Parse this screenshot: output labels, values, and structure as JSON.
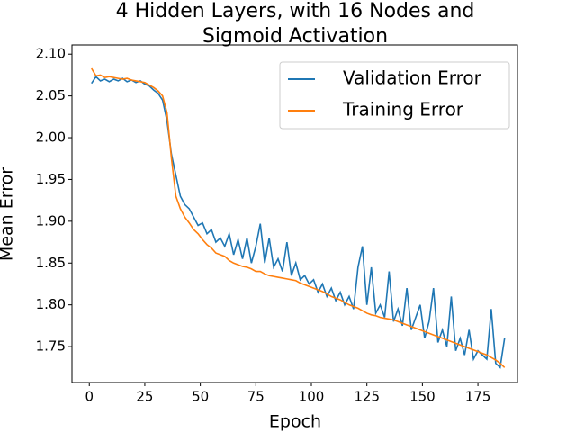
{
  "chart_data": {
    "type": "line",
    "title": [
      "4 Hidden Layers, with 16 Nodes and",
      "Sigmoid Activation"
    ],
    "x_label": "Epoch",
    "y_label": "Mean Error",
    "x": [
      1,
      3,
      5,
      7,
      9,
      11,
      13,
      15,
      17,
      19,
      21,
      23,
      25,
      27,
      29,
      31,
      33,
      35,
      37,
      39,
      41,
      43,
      45,
      47,
      49,
      51,
      53,
      55,
      57,
      59,
      61,
      63,
      65,
      67,
      69,
      71,
      73,
      75,
      77,
      79,
      81,
      83,
      85,
      87,
      89,
      91,
      93,
      95,
      97,
      99,
      101,
      103,
      105,
      107,
      109,
      111,
      113,
      115,
      117,
      119,
      121,
      123,
      125,
      127,
      129,
      131,
      133,
      135,
      137,
      139,
      141,
      143,
      145,
      147,
      149,
      151,
      153,
      155,
      157,
      159,
      161,
      163,
      165,
      167,
      169,
      171,
      173,
      175,
      177,
      179,
      181,
      183,
      185,
      187
    ],
    "series": [
      {
        "name": "Validation Error",
        "color": "#1f77b4",
        "values": [
          2.065,
          2.073,
          2.068,
          2.07,
          2.067,
          2.07,
          2.068,
          2.071,
          2.067,
          2.069,
          2.066,
          2.068,
          2.064,
          2.062,
          2.057,
          2.053,
          2.045,
          2.02,
          1.98,
          1.955,
          1.93,
          1.92,
          1.915,
          1.905,
          1.895,
          1.898,
          1.885,
          1.89,
          1.875,
          1.88,
          1.87,
          1.885,
          1.86,
          1.878,
          1.855,
          1.88,
          1.85,
          1.87,
          1.897,
          1.85,
          1.88,
          1.845,
          1.855,
          1.84,
          1.875,
          1.835,
          1.85,
          1.83,
          1.835,
          1.825,
          1.83,
          1.815,
          1.825,
          1.81,
          1.82,
          1.805,
          1.815,
          1.8,
          1.81,
          1.795,
          1.845,
          1.87,
          1.8,
          1.845,
          1.79,
          1.8,
          1.785,
          1.84,
          1.78,
          1.795,
          1.775,
          1.82,
          1.77,
          1.785,
          1.8,
          1.76,
          1.78,
          1.82,
          1.755,
          1.77,
          1.75,
          1.81,
          1.745,
          1.76,
          1.74,
          1.77,
          1.735,
          1.745,
          1.74,
          1.735,
          1.795,
          1.73,
          1.725,
          1.76
        ]
      },
      {
        "name": "Training Error",
        "color": "#ff7f0e",
        "values": [
          2.083,
          2.074,
          2.075,
          2.072,
          2.073,
          2.072,
          2.071,
          2.07,
          2.071,
          2.069,
          2.068,
          2.067,
          2.066,
          2.063,
          2.06,
          2.056,
          2.05,
          2.03,
          1.975,
          1.93,
          1.915,
          1.905,
          1.898,
          1.89,
          1.885,
          1.878,
          1.872,
          1.868,
          1.862,
          1.86,
          1.858,
          1.853,
          1.85,
          1.848,
          1.846,
          1.845,
          1.843,
          1.84,
          1.84,
          1.837,
          1.835,
          1.834,
          1.833,
          1.832,
          1.831,
          1.83,
          1.829,
          1.826,
          1.824,
          1.822,
          1.82,
          1.818,
          1.816,
          1.813,
          1.81,
          1.808,
          1.806,
          1.803,
          1.8,
          1.798,
          1.796,
          1.793,
          1.79,
          1.788,
          1.787,
          1.785,
          1.784,
          1.783,
          1.782,
          1.78,
          1.778,
          1.776,
          1.774,
          1.772,
          1.77,
          1.768,
          1.766,
          1.764,
          1.762,
          1.76,
          1.758,
          1.756,
          1.754,
          1.752,
          1.75,
          1.748,
          1.746,
          1.744,
          1.742,
          1.74,
          1.737,
          1.734,
          1.73,
          1.725
        ]
      }
    ],
    "xlim": [
      -7.8,
      192.8
    ],
    "ylim": [
      1.707,
      2.111
    ],
    "xticks": [
      0,
      25,
      50,
      75,
      100,
      125,
      150,
      175
    ],
    "yticks": [
      1.75,
      {
        "value": 1.8,
        "label": "1.80"
      },
      1.85,
      {
        "value": 1.9,
        "label": "1.90"
      },
      1.95,
      {
        "value": 2.0,
        "label": "2.00"
      },
      2.05,
      {
        "value": 2.1,
        "label": "2.10"
      }
    ],
    "legend": "upper right",
    "grid": false
  }
}
